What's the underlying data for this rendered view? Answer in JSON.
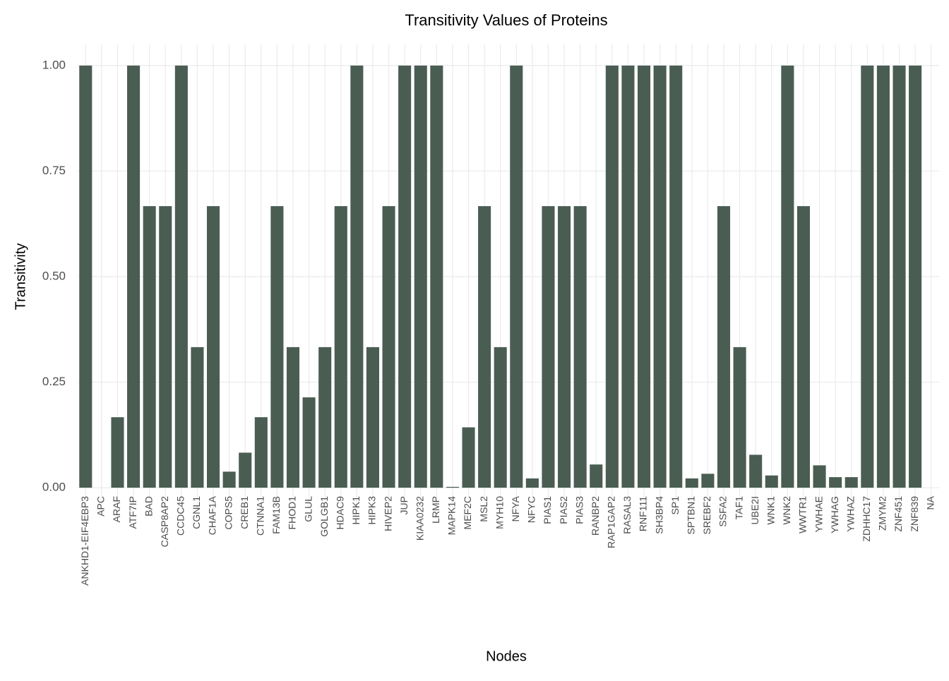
{
  "chart_data": {
    "type": "bar",
    "title": "Transitivity Values of Proteins",
    "xlabel": "Nodes",
    "ylabel": "Transitivity",
    "categories": [
      "ANKHD1-EIF4EBP3",
      "APC",
      "ARAF",
      "ATF7IP",
      "BAD",
      "CASP8AP2",
      "CCDC45",
      "CGNL1",
      "CHAF1A",
      "COPS5",
      "CREB1",
      "CTNNA1",
      "FAM13B",
      "FHOD1",
      "GLUL",
      "GOLGB1",
      "HDAC9",
      "HIPK1",
      "HIPK3",
      "HIVEP2",
      "JUP",
      "KIAA0232",
      "LRMP",
      "MAPK14",
      "MEF2C",
      "MSL2",
      "MYH10",
      "NFYA",
      "NFYC",
      "PIAS1",
      "PIAS2",
      "PIAS3",
      "RANBP2",
      "RAP1GAP2",
      "RASAL3",
      "RNF111",
      "SH3BP4",
      "SP1",
      "SPTBN1",
      "SREBF2",
      "SSFA2",
      "TAF1",
      "UBE2I",
      "WNK1",
      "WNK2",
      "WWTR1",
      "YWHAE",
      "YWHAG",
      "YWHAZ",
      "ZDHHC17",
      "ZMYM2",
      "ZNF451",
      "ZNF839",
      "NA"
    ],
    "values": [
      1,
      0,
      0.167,
      1,
      0.667,
      0.667,
      1,
      0.333,
      0.667,
      0.038,
      0.083,
      0.167,
      0.667,
      0.333,
      0.214,
      0.333,
      0.667,
      1,
      0.333,
      0.667,
      1,
      1,
      1,
      0.002,
      0.143,
      0.667,
      0.333,
      1,
      0.022,
      0.667,
      0.667,
      0.667,
      0.055,
      1,
      1,
      1,
      1,
      1,
      0.022,
      0.033,
      0.667,
      0.333,
      0.078,
      0.029,
      1,
      0.667,
      0.053,
      0.025,
      0.025,
      1,
      1,
      1,
      1,
      null
    ],
    "color": "#4a5d53",
    "ylim": [
      -0.05,
      1.05
    ],
    "yticks": [
      {
        "value": 0,
        "label": "0.00"
      },
      {
        "value": 0.25,
        "label": "0.25"
      },
      {
        "value": 0.5,
        "label": "0.50"
      },
      {
        "value": 0.75,
        "label": "0.75"
      },
      {
        "value": 1,
        "label": "1.00"
      }
    ],
    "grid": true
  }
}
